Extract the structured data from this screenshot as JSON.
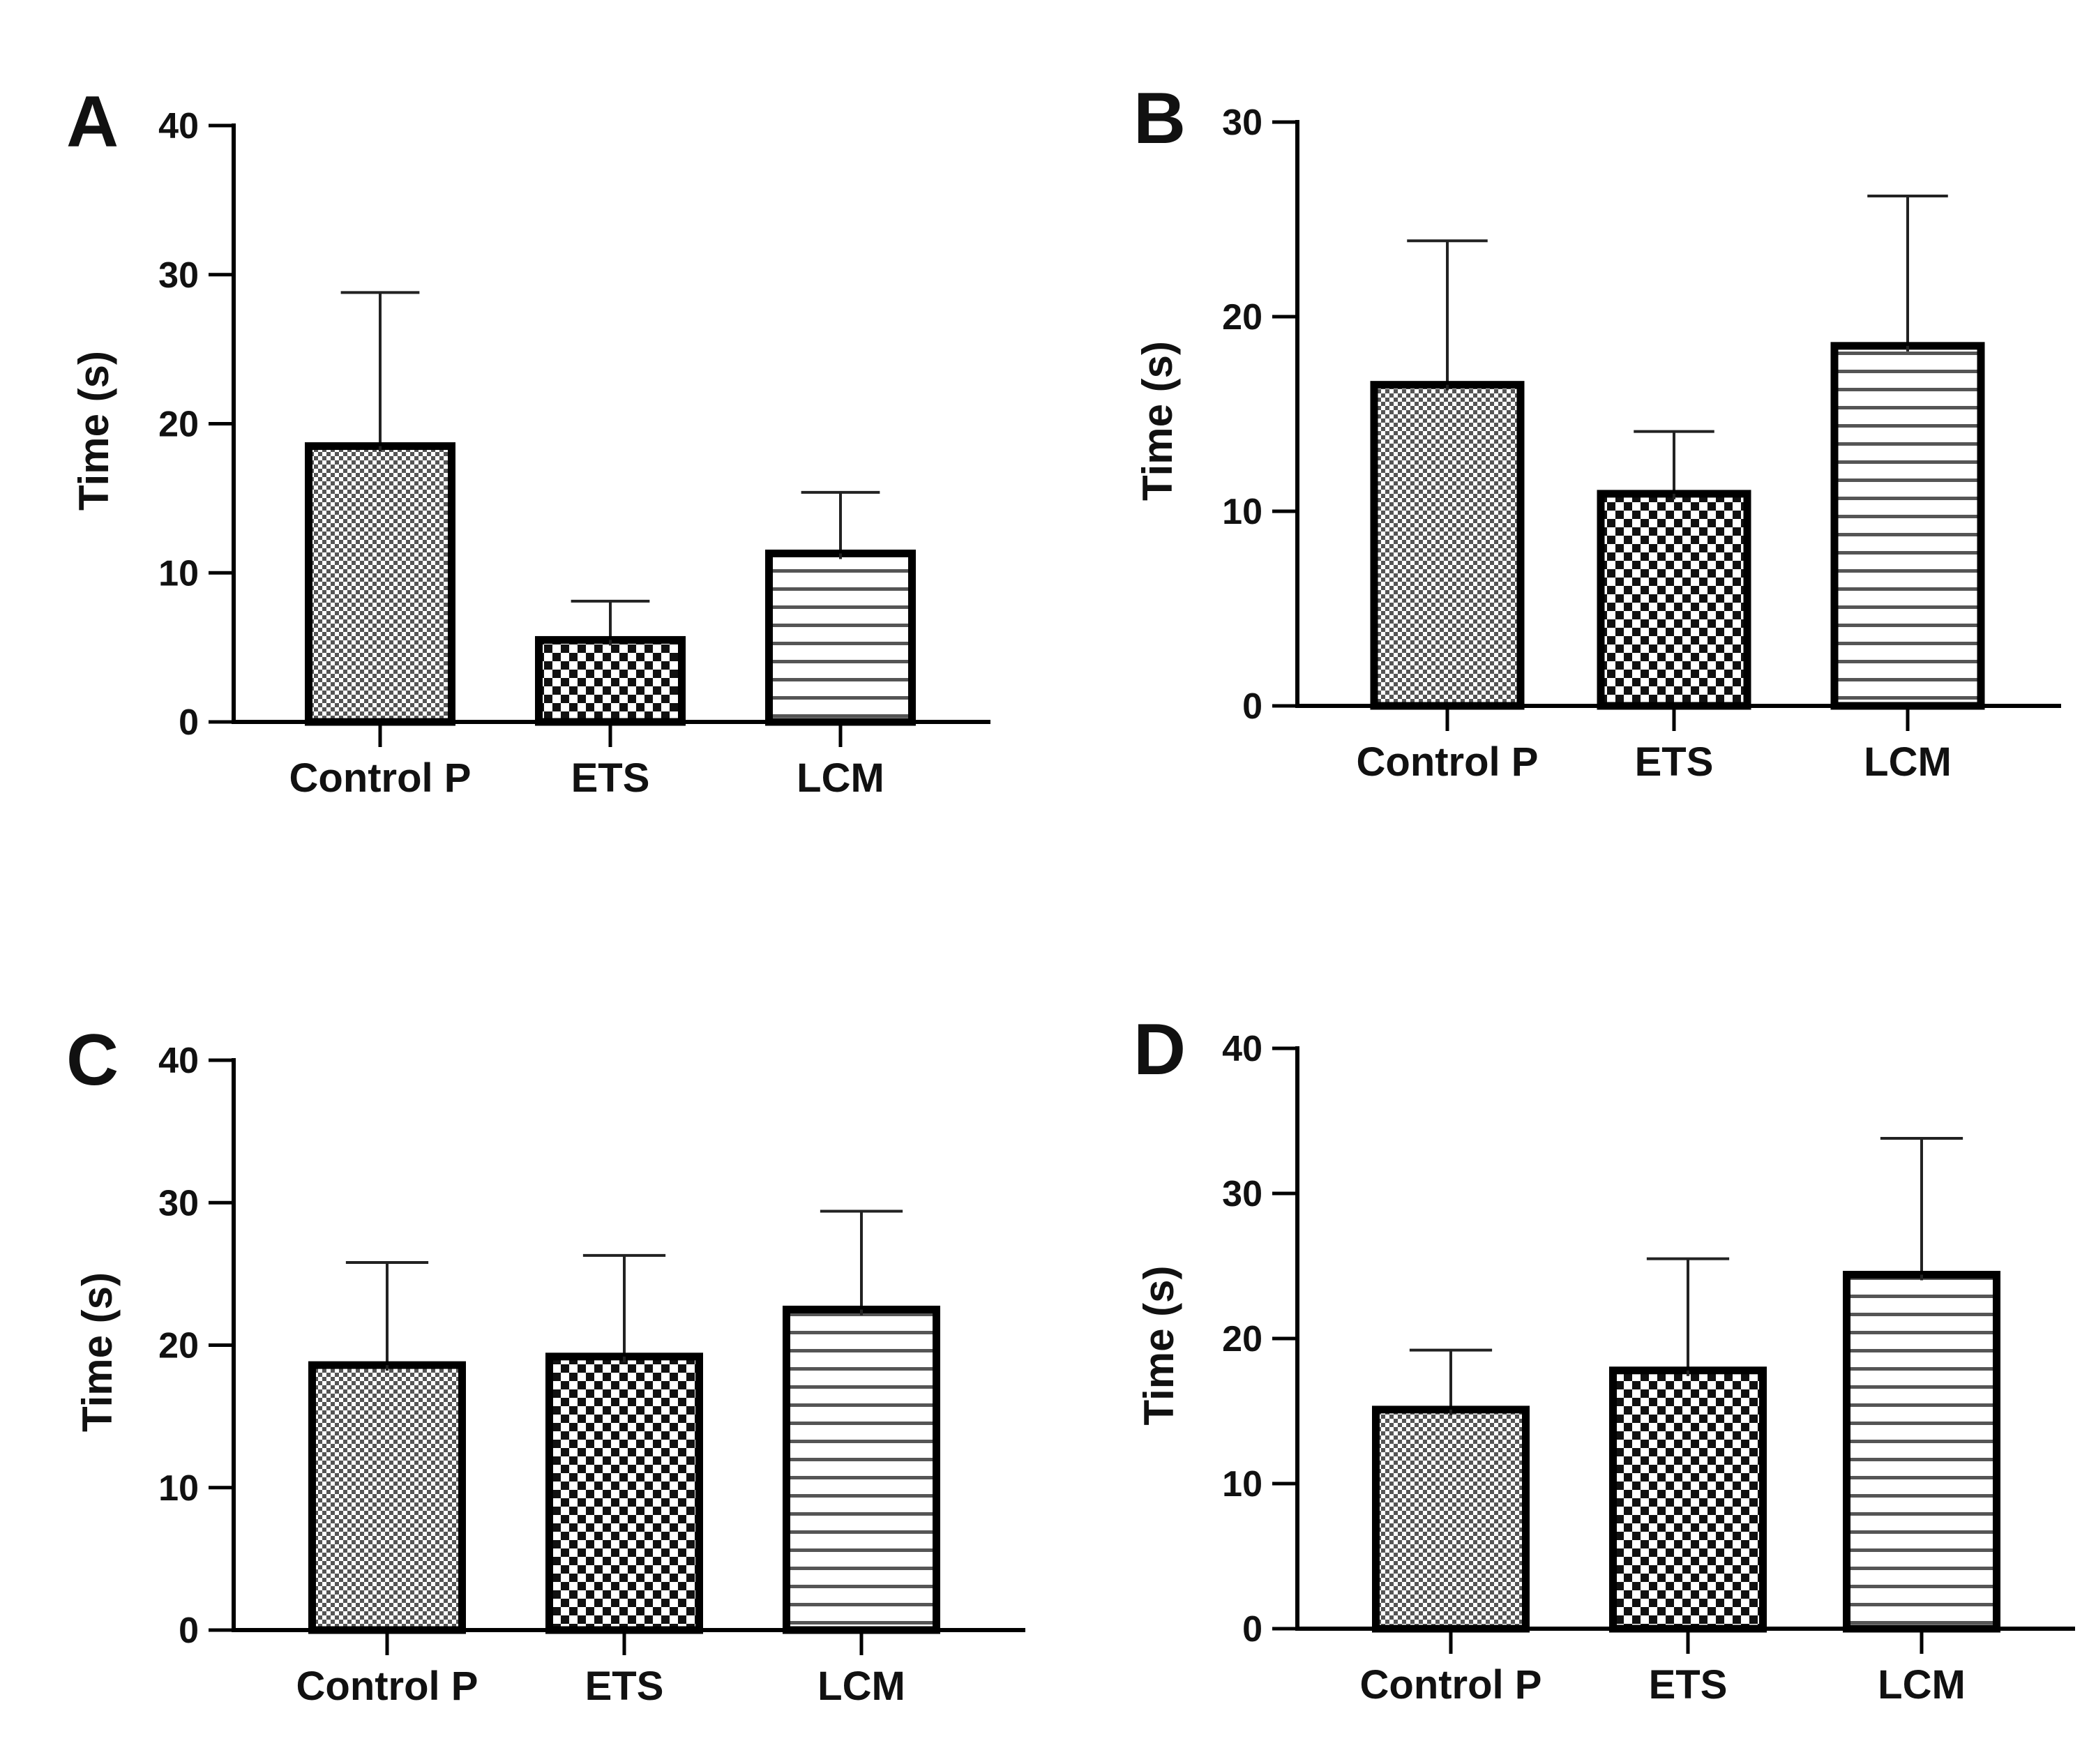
{
  "chart_data": [
    {
      "type": "bar",
      "panel": "A",
      "ylabel": "Time (s)",
      "ylim": [
        0,
        40
      ],
      "yticks": [
        0,
        10,
        20,
        30,
        40
      ],
      "categories": [
        "Control P",
        "ETS",
        "LCM"
      ],
      "patterns": [
        "fine-check",
        "coarse-check",
        "horizontal-lines"
      ],
      "values": [
        18.5,
        5.5,
        11.3
      ],
      "error_upper": [
        28.8,
        8.1,
        15.4
      ]
    },
    {
      "type": "bar",
      "panel": "B",
      "ylabel": "Time (s)",
      "ylim": [
        0,
        30
      ],
      "yticks": [
        0,
        10,
        20,
        30
      ],
      "categories": [
        "Control P",
        "ETS",
        "LCM"
      ],
      "patterns": [
        "fine-check",
        "coarse-check",
        "horizontal-lines"
      ],
      "values": [
        16.5,
        10.9,
        18.5
      ],
      "error_upper": [
        23.9,
        14.1,
        26.2
      ]
    },
    {
      "type": "bar",
      "panel": "C",
      "ylabel": "Time (s)",
      "ylim": [
        0,
        40
      ],
      "yticks": [
        0,
        10,
        20,
        30,
        40
      ],
      "categories": [
        "Control P",
        "ETS",
        "LCM"
      ],
      "patterns": [
        "fine-check",
        "coarse-check",
        "horizontal-lines"
      ],
      "values": [
        18.6,
        19.2,
        22.5
      ],
      "error_upper": [
        25.8,
        26.3,
        29.4
      ]
    },
    {
      "type": "bar",
      "panel": "D",
      "ylabel": "Time (s)",
      "ylim": [
        0,
        40
      ],
      "yticks": [
        0,
        10,
        20,
        30,
        40
      ],
      "categories": [
        "Control P",
        "ETS",
        "LCM"
      ],
      "patterns": [
        "fine-check",
        "coarse-check",
        "horizontal-lines"
      ],
      "values": [
        15.1,
        17.8,
        24.4
      ],
      "error_upper": [
        19.2,
        25.5,
        33.8
      ]
    }
  ]
}
